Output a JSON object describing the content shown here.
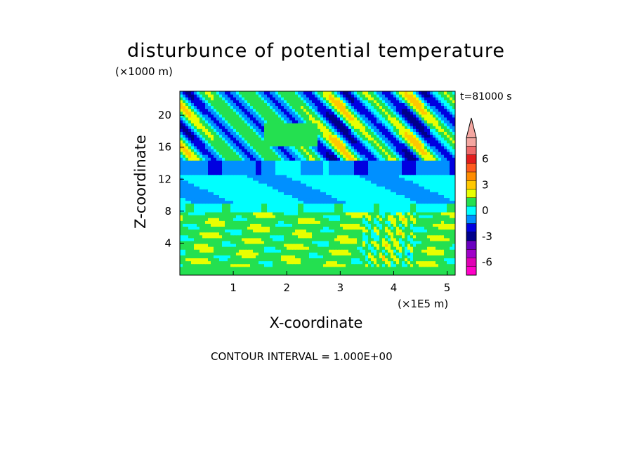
{
  "chart_data": {
    "type": "heatmap",
    "title": "disturbunce of potential temperature",
    "xlabel": "X-coordinate",
    "ylabel": "Z-coordinate",
    "x_unit": "(×1E5 m)",
    "z_unit": "(×1000 m)",
    "time_label": "t=81000 s",
    "footnote": "CONTOUR INTERVAL = 1.000E+00",
    "x_ticks": [
      "1",
      "2",
      "3",
      "4",
      "5"
    ],
    "y_ticks": [
      "4",
      "8",
      "12",
      "16",
      "20"
    ],
    "xlim": [
      0,
      5.15
    ],
    "ylim": [
      0,
      23
    ],
    "colorbar": {
      "tick_labels": [
        "6",
        "3",
        "0",
        "-3",
        "-6"
      ],
      "levels": [
        8,
        7,
        6,
        5,
        4,
        3,
        2,
        1,
        0,
        -1,
        -2,
        -3,
        -4,
        -5,
        -6,
        -7
      ],
      "colors": [
        "#f4a6a0",
        "#ee6a6a",
        "#e21c1c",
        "#ff5a1e",
        "#ff8c00",
        "#ffc800",
        "#e8ff00",
        "#24e050",
        "#00ffff",
        "#0090ff",
        "#0000e0",
        "#00008a",
        "#6a00c0",
        "#a000c8",
        "#e000b4",
        "#ff00c8"
      ]
    }
  }
}
